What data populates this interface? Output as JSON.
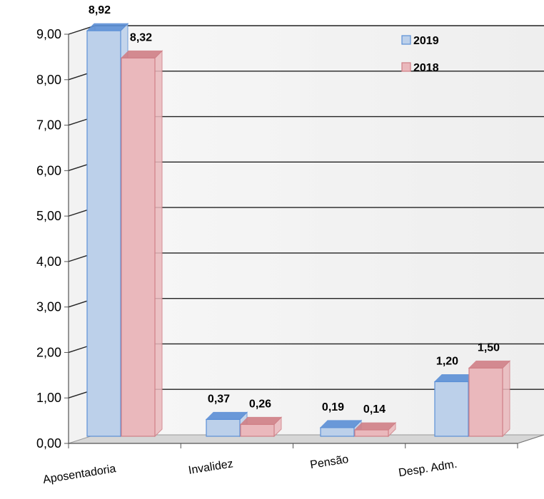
{
  "chart_data": {
    "type": "bar",
    "categories": [
      "Aposentadoria",
      "Invalidez",
      "Pensão",
      "Desp. Adm."
    ],
    "series": [
      {
        "name": "2019",
        "values": [
          8.92,
          0.37,
          0.19,
          1.2
        ],
        "value_labels": [
          "8,92",
          "0,37",
          "0,19",
          "1,20"
        ]
      },
      {
        "name": "2018",
        "values": [
          8.32,
          0.26,
          0.14,
          1.5
        ],
        "value_labels": [
          "8,32",
          "0,26",
          "0,14",
          "1,50"
        ]
      }
    ],
    "yticks": [
      "0,00",
      "1,00",
      "2,00",
      "3,00",
      "4,00",
      "5,00",
      "6,00",
      "7,00",
      "8,00",
      "9,00"
    ],
    "ylim": [
      0,
      9
    ],
    "grid": true,
    "legend_position": "top-right",
    "colors": {
      "2019": "#bcd0ea",
      "2019_edge": "#5b8fd6",
      "2018": "#eab8bc",
      "2018_edge": "#d07f86"
    }
  }
}
